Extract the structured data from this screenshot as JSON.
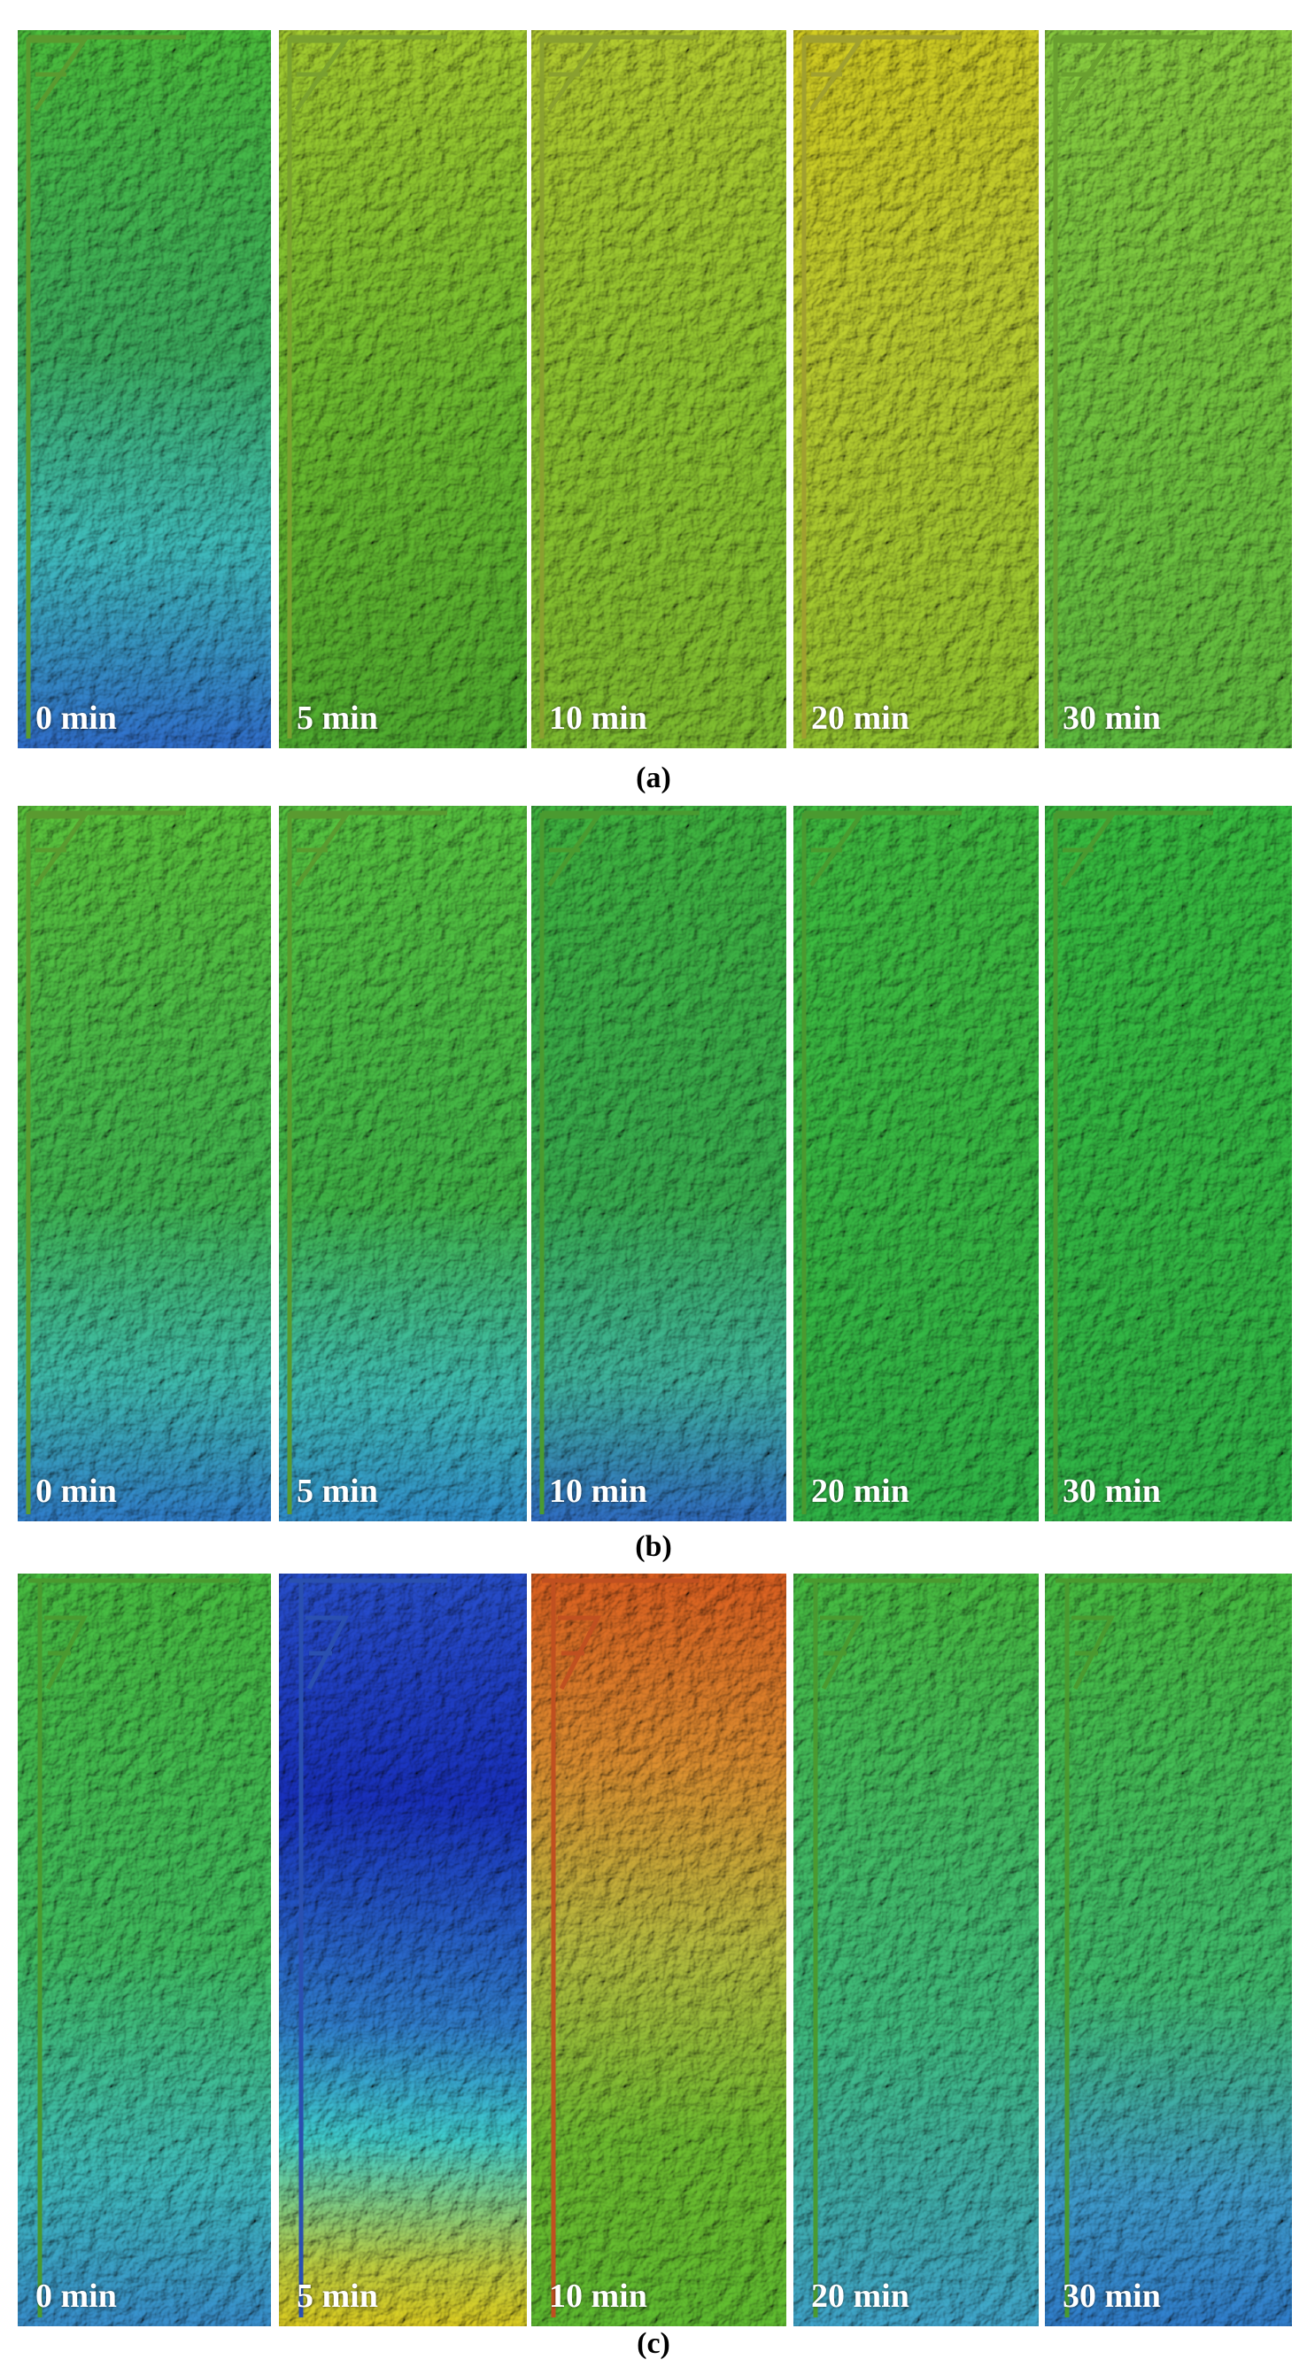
{
  "figure": {
    "rows": [
      {
        "label": "(a)",
        "panels": [
          "0 min",
          "5 min",
          "10 min",
          "20 min",
          "30 min"
        ]
      },
      {
        "label": "(b)",
        "panels": [
          "0 min",
          "5 min",
          "10 min",
          "20 min",
          "30 min"
        ]
      },
      {
        "label": "(c)",
        "panels": [
          "0 min",
          "5 min",
          "10 min",
          "20 min",
          "30 min"
        ]
      }
    ]
  }
}
